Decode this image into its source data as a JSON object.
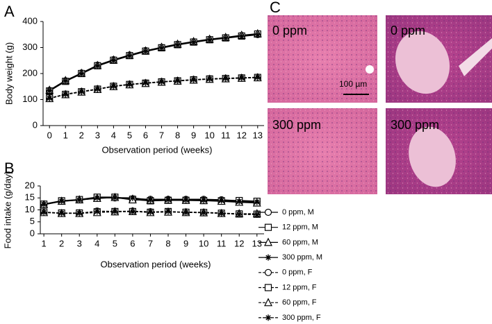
{
  "panel_c": {
    "label": "C",
    "images": [
      "0 ppm",
      "0 ppm",
      "300 ppm",
      "300 ppm"
    ],
    "scale_bar": "100 µm"
  },
  "chart_data": [
    {
      "type": "line",
      "label": "A",
      "xlabel": "Observation period (weeks)",
      "ylabel": "Body weight (g)",
      "x": [
        0,
        1,
        2,
        3,
        4,
        5,
        6,
        7,
        8,
        9,
        10,
        11,
        12,
        13
      ],
      "xlim": [
        -0.4,
        13.4
      ],
      "xticks": [
        0,
        1,
        2,
        3,
        4,
        5,
        6,
        7,
        8,
        9,
        10,
        11,
        12,
        13
      ],
      "ylim": [
        0,
        400
      ],
      "yticks": [
        0,
        100,
        200,
        300,
        400
      ],
      "series": [
        {
          "color": "#000000",
          "marker": "circle",
          "dash": "solid",
          "values": [
            135,
            172,
            202,
            232,
            253,
            271,
            288,
            300,
            312,
            322,
            331,
            338,
            346,
            350
          ]
        },
        {
          "color": "#000000",
          "marker": "square",
          "dash": "solid",
          "values": [
            133,
            170,
            200,
            230,
            251,
            269,
            286,
            299,
            311,
            321,
            330,
            337,
            344,
            352
          ]
        },
        {
          "color": "#000000",
          "marker": "triangle",
          "dash": "solid",
          "values": [
            136,
            173,
            201,
            231,
            252,
            270,
            287,
            301,
            313,
            323,
            332,
            339,
            347,
            353
          ]
        },
        {
          "color": "#000000",
          "marker": "asterisk",
          "dash": "solid",
          "values": [
            134,
            171,
            199,
            229,
            250,
            268,
            285,
            298,
            310,
            320,
            329,
            336,
            343,
            349
          ]
        },
        {
          "color": "#000000",
          "marker": "circle",
          "dash": "dashed",
          "values": [
            105,
            121,
            131,
            141,
            152,
            159,
            164,
            169,
            173,
            177,
            180,
            182,
            184,
            186
          ]
        },
        {
          "color": "#000000",
          "marker": "square",
          "dash": "dashed",
          "values": [
            106,
            120,
            130,
            140,
            151,
            158,
            163,
            168,
            172,
            176,
            179,
            181,
            183,
            185
          ]
        },
        {
          "color": "#000000",
          "marker": "triangle",
          "dash": "dashed",
          "values": [
            104,
            119,
            129,
            139,
            150,
            157,
            162,
            167,
            171,
            175,
            178,
            180,
            182,
            184
          ]
        },
        {
          "color": "#000000",
          "marker": "asterisk",
          "dash": "dashed",
          "values": [
            105,
            120,
            130,
            140,
            151,
            158,
            164,
            168,
            172,
            176,
            179,
            181,
            183,
            185
          ]
        }
      ]
    },
    {
      "type": "line",
      "label": "B",
      "xlabel": "Observation period (weeks)",
      "ylabel": "Food intake (g/day)",
      "x": [
        1,
        2,
        3,
        4,
        5,
        6,
        7,
        8,
        9,
        10,
        11,
        12,
        13
      ],
      "xlim": [
        0.8,
        13.4
      ],
      "xticks": [
        1,
        2,
        3,
        4,
        5,
        6,
        7,
        8,
        9,
        10,
        11,
        12,
        13
      ],
      "ylim": [
        0,
        20
      ],
      "yticks": [
        0,
        5,
        10,
        15,
        20
      ],
      "legend": "right",
      "series": [
        {
          "name": "0 ppm, M",
          "color": "#000000",
          "marker": "circle",
          "dash": "solid",
          "values": [
            12.3,
            13.7,
            14.2,
            15.0,
            15.0,
            14.6,
            14.4,
            14.4,
            14.4,
            14.4,
            14.2,
            13.8,
            13.5
          ]
        },
        {
          "name": "12 ppm, M",
          "color": "#000000",
          "marker": "square",
          "dash": "solid",
          "values": [
            12.4,
            13.8,
            14.3,
            15.3,
            15.3,
            14.4,
            13.8,
            14.0,
            14.0,
            13.9,
            13.8,
            13.9,
            13.6
          ]
        },
        {
          "name": "60 ppm, M",
          "color": "#000000",
          "marker": "triangle",
          "dash": "solid",
          "values": [
            12.2,
            13.6,
            14.2,
            14.8,
            15.2,
            14.2,
            14.0,
            14.1,
            14.0,
            13.9,
            13.6,
            13.2,
            12.9
          ]
        },
        {
          "name": "300 ppm, M",
          "color": "#000000",
          "marker": "asterisk",
          "dash": "solid",
          "values": [
            12.3,
            13.6,
            14.1,
            15.0,
            15.1,
            15.0,
            14.1,
            14.2,
            14.1,
            14.0,
            13.9,
            13.5,
            13.3
          ]
        },
        {
          "name": "0 ppm, F",
          "color": "#000000",
          "marker": "circle",
          "dash": "dashed",
          "values": [
            9.0,
            8.6,
            8.6,
            9.5,
            9.4,
            9.5,
            9.2,
            9.2,
            9.1,
            9.0,
            8.7,
            8.4,
            8.3
          ]
        },
        {
          "name": "12 ppm, F",
          "color": "#000000",
          "marker": "square",
          "dash": "dashed",
          "values": [
            9.1,
            8.7,
            8.7,
            9.2,
            9.3,
            9.3,
            9.0,
            9.3,
            9.0,
            8.9,
            8.6,
            8.3,
            8.2
          ]
        },
        {
          "name": "60 ppm, F",
          "color": "#000000",
          "marker": "triangle",
          "dash": "dashed",
          "values": [
            8.9,
            8.5,
            8.5,
            8.9,
            9.2,
            9.3,
            8.9,
            9.1,
            8.9,
            8.8,
            8.5,
            8.4,
            8.4
          ]
        },
        {
          "name": "300 ppm, F",
          "color": "#000000",
          "marker": "asterisk",
          "dash": "dashed",
          "values": [
            9.0,
            8.6,
            8.6,
            9.3,
            9.3,
            9.2,
            9.1,
            9.4,
            8.9,
            8.8,
            8.5,
            8.1,
            8.0
          ]
        }
      ]
    }
  ]
}
